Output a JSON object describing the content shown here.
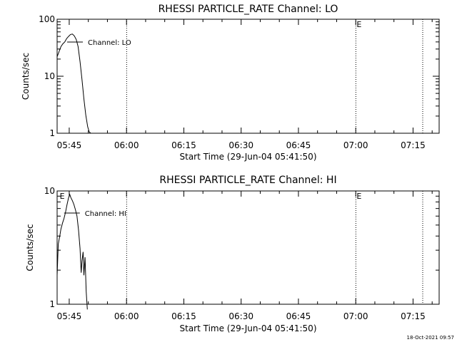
{
  "footer_timestamp": "18-Oct-2021 09:57",
  "x_tick_labels": [
    "05:45",
    "06:00",
    "06:15",
    "06:30",
    "06:45",
    "07:00",
    "07:15"
  ],
  "x_ticks_minutes": [
    3.167,
    18.167,
    33.167,
    48.167,
    63.167,
    78.167,
    93.167
  ],
  "chart_data": [
    {
      "type": "line",
      "title": "RHESSI PARTICLE_RATE Channel: LO",
      "xlabel": "Start Time (29-Jun-04 05:41:50)",
      "ylabel": "Counts/sec",
      "y_scale": "log",
      "ylim": [
        1,
        100
      ],
      "y_tick_labels": [
        "1",
        "10",
        "100"
      ],
      "y_ticks": [
        1,
        10,
        100
      ],
      "xlim_minutes_from_start": [
        0,
        100
      ],
      "vertical_dotted_lines_minutes": [
        18.2,
        78.2,
        95.7
      ],
      "markers": [
        {
          "label": "E",
          "x_minutes": 78.2
        }
      ],
      "series": [
        {
          "name": "Channel: LO",
          "x_minutes": [
            0.0,
            0.5,
            1.0,
            1.5,
            2.0,
            2.5,
            3.0,
            3.5,
            4.0,
            4.5,
            5.0,
            5.5,
            6.0,
            6.5,
            7.0,
            7.5,
            8.0,
            8.4,
            8.8
          ],
          "values": [
            22,
            27,
            33,
            37,
            40,
            46,
            50,
            54,
            55,
            51,
            44,
            33,
            18,
            8.8,
            4.0,
            2.1,
            1.3,
            1.06,
            1.0
          ]
        }
      ]
    },
    {
      "type": "line",
      "title": "RHESSI PARTICLE_RATE Channel: HI",
      "xlabel": "Start Time (29-Jun-04 05:41:50)",
      "ylabel": "Counts/sec",
      "y_scale": "log",
      "ylim": [
        1,
        10
      ],
      "y_tick_labels": [
        "1",
        "10"
      ],
      "y_ticks": [
        1,
        10
      ],
      "xlim_minutes_from_start": [
        0,
        100
      ],
      "vertical_dotted_lines_minutes": [
        18.2,
        78.2,
        95.7
      ],
      "markers": [
        {
          "label": "E",
          "x_minutes": 0.5
        },
        {
          "label": "E",
          "x_minutes": 78.2
        }
      ],
      "series": [
        {
          "name": "Channel: HI",
          "x_minutes": [
            0.0,
            0.3,
            0.7,
            1.0,
            1.4,
            1.8,
            2.2,
            2.6,
            3.0,
            3.3,
            3.6,
            4.0,
            4.4,
            4.8,
            5.2,
            5.6,
            6.0,
            6.3,
            6.5,
            6.8,
            7.0,
            7.3,
            7.6,
            7.9
          ],
          "values": [
            1.8,
            3.4,
            4.0,
            4.6,
            5.2,
            5.7,
            6.5,
            7.6,
            8.7,
            9.3,
            8.7,
            8.2,
            7.6,
            6.8,
            6.0,
            4.5,
            3.1,
            1.9,
            2.4,
            2.9,
            1.8,
            2.6,
            1.3,
            0.9
          ]
        }
      ]
    }
  ]
}
